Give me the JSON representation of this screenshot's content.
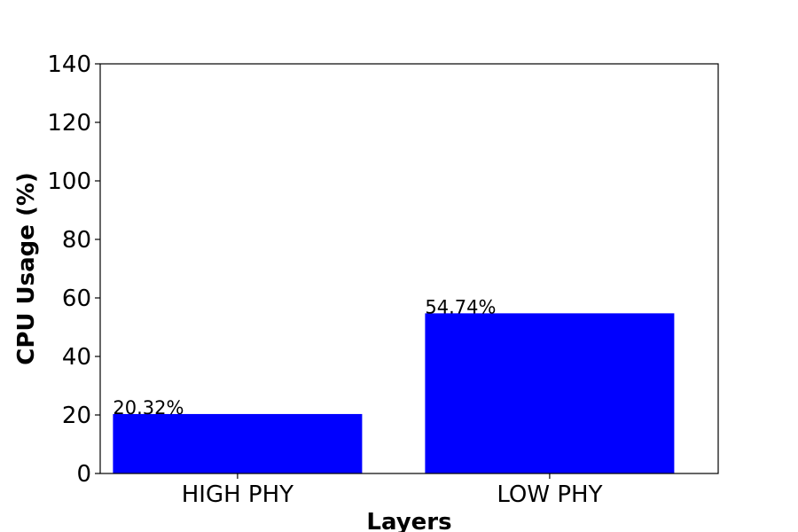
{
  "chart_data": {
    "type": "bar",
    "title": "",
    "xlabel": "Layers",
    "ylabel": "CPU Usage (%)",
    "categories": [
      "HIGH PHY",
      "LOW PHY"
    ],
    "values": [
      20.32,
      54.74
    ],
    "data_labels": [
      "20.32%",
      "54.74%"
    ],
    "ylim": [
      0,
      140
    ],
    "yticks": [
      0,
      20,
      40,
      60,
      80,
      100,
      120,
      140
    ],
    "bar_color": "#0000ff",
    "grid": false,
    "legend": "none"
  }
}
